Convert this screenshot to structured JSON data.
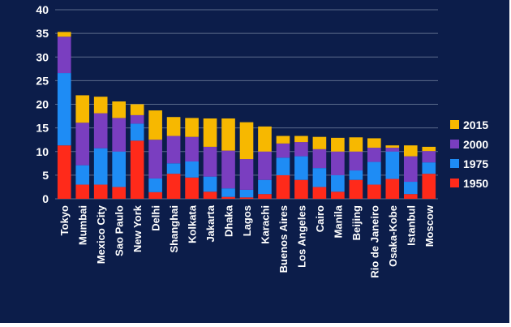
{
  "chart_data": {
    "type": "bar",
    "stacked": true,
    "categories": [
      "Tokyo",
      "Mumbai",
      "Mexico City",
      "Sao Paulo",
      "New York",
      "Delhi",
      "Shanghai",
      "Kolkata",
      "Jakarta",
      "Dhaka",
      "Lagos",
      "Karachi",
      "Buenos Aires",
      "Los Angeles",
      "Cairo",
      "Manila",
      "Beijing",
      "Rio de Janeiro",
      "Osaka-Kobe",
      "Istanbul",
      "Moscow"
    ],
    "series": [
      {
        "name": "1950",
        "color": "#ff2a1a",
        "values": [
          11.3,
          3.0,
          3.0,
          2.5,
          12.3,
          1.4,
          5.3,
          4.5,
          1.5,
          0.4,
          0.3,
          1.0,
          5.0,
          4.0,
          2.5,
          1.5,
          4.0,
          3.0,
          4.2,
          1.0,
          5.3
        ]
      },
      {
        "name": "1975",
        "color": "#1e8cf5",
        "values": [
          15.3,
          4.1,
          7.7,
          7.5,
          3.6,
          2.9,
          2.2,
          3.4,
          3.2,
          1.8,
          1.6,
          3.0,
          3.7,
          5.0,
          4.0,
          3.5,
          2.0,
          4.8,
          5.8,
          2.6,
          2.4
        ]
      },
      {
        "name": "2000",
        "color": "#7a3ec0",
        "values": [
          7.7,
          9.0,
          7.4,
          7.1,
          1.8,
          8.2,
          5.8,
          5.2,
          6.3,
          8.0,
          6.5,
          6.0,
          3.0,
          3.0,
          4.0,
          5.0,
          4.0,
          3.0,
          0.8,
          5.4,
          2.4
        ]
      },
      {
        "name": "2015",
        "color": "#f7b800",
        "values": [
          1.0,
          5.8,
          3.5,
          3.5,
          2.3,
          6.2,
          4.0,
          4.0,
          6.0,
          6.8,
          7.8,
          5.3,
          1.6,
          1.3,
          2.6,
          2.9,
          3.0,
          2.0,
          0.5,
          2.3,
          0.9
        ]
      }
    ],
    "ylim": [
      0,
      40
    ],
    "yticks": [
      0,
      5,
      10,
      15,
      20,
      25,
      30,
      35,
      40
    ],
    "grid": true,
    "legend_position": "right",
    "legend_order": [
      "2015",
      "2000",
      "1975",
      "1950"
    ]
  },
  "colors": {
    "background": "#0c1d4a",
    "text": "#ffffff",
    "gridline": "#5b6b8c"
  }
}
